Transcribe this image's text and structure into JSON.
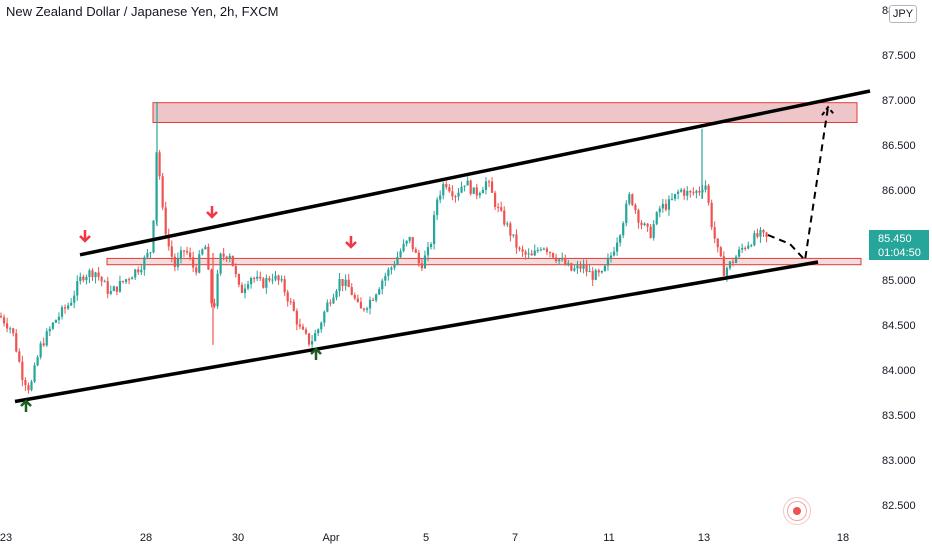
{
  "header": {
    "title": "New Zealand Dollar / Japanese Yen, 2h, FXCM",
    "currency": "JPY"
  },
  "price_tag": {
    "price": "85.450",
    "countdown": "01:04:50"
  },
  "colors": {
    "up": "#26a69a",
    "down": "#ef5350",
    "zone_fill": "#e0989c",
    "zone_border": "#e53935",
    "channel": "#000000",
    "arrow_up": "#1b5e20",
    "arrow_down": "#f23645"
  },
  "chart_data": {
    "type": "candlestick",
    "title": "New Zealand Dollar / Japanese Yen, 2h, FXCM",
    "ylim": [
      82.3,
      88.0
    ],
    "y_ticks": [
      "88.000",
      "87.500",
      "87.000",
      "86.500",
      "86.000",
      "85.500",
      "85.000",
      "84.500",
      "84.000",
      "83.500",
      "83.000",
      "82.500"
    ],
    "x_ticks": [
      "23",
      "28",
      "30",
      "Apr",
      "5",
      "7",
      "11",
      "13",
      "18"
    ],
    "last_price": 85.45,
    "close_path": [
      [
        0,
        84.6
      ],
      [
        12,
        84.45
      ],
      [
        22,
        83.95
      ],
      [
        30,
        83.78
      ],
      [
        40,
        84.25
      ],
      [
        55,
        84.55
      ],
      [
        70,
        84.75
      ],
      [
        82,
        85.05
      ],
      [
        95,
        85.1
      ],
      [
        110,
        84.85
      ],
      [
        125,
        85.0
      ],
      [
        140,
        85.15
      ],
      [
        152,
        85.35
      ],
      [
        157,
        86.55
      ],
      [
        162,
        85.8
      ],
      [
        168,
        85.4
      ],
      [
        175,
        85.15
      ],
      [
        185,
        85.35
      ],
      [
        195,
        85.1
      ],
      [
        205,
        85.4
      ],
      [
        213,
        84.6
      ],
      [
        220,
        85.25
      ],
      [
        230,
        85.3
      ],
      [
        240,
        84.85
      ],
      [
        250,
        85.05
      ],
      [
        262,
        84.95
      ],
      [
        272,
        85.05
      ],
      [
        282,
        84.95
      ],
      [
        292,
        84.7
      ],
      [
        300,
        84.45
      ],
      [
        310,
        84.3
      ],
      [
        318,
        84.45
      ],
      [
        328,
        84.75
      ],
      [
        340,
        85.0
      ],
      [
        350,
        84.9
      ],
      [
        360,
        84.65
      ],
      [
        372,
        84.8
      ],
      [
        382,
        85.0
      ],
      [
        392,
        85.15
      ],
      [
        402,
        85.35
      ],
      [
        410,
        85.45
      ],
      [
        420,
        85.15
      ],
      [
        430,
        85.35
      ],
      [
        437,
        85.9
      ],
      [
        445,
        86.1
      ],
      [
        455,
        85.95
      ],
      [
        465,
        86.1
      ],
      [
        475,
        85.95
      ],
      [
        487,
        86.1
      ],
      [
        497,
        85.8
      ],
      [
        507,
        85.6
      ],
      [
        520,
        85.3
      ],
      [
        532,
        85.25
      ],
      [
        542,
        85.4
      ],
      [
        552,
        85.3
      ],
      [
        562,
        85.2
      ],
      [
        572,
        85.1
      ],
      [
        582,
        85.15
      ],
      [
        592,
        85.05
      ],
      [
        602,
        85.05
      ],
      [
        612,
        85.3
      ],
      [
        620,
        85.55
      ],
      [
        630,
        85.95
      ],
      [
        640,
        85.65
      ],
      [
        650,
        85.5
      ],
      [
        660,
        85.8
      ],
      [
        670,
        85.85
      ],
      [
        680,
        86.0
      ],
      [
        690,
        85.95
      ],
      [
        700,
        86.0
      ],
      [
        705,
        86.1
      ],
      [
        712,
        85.6
      ],
      [
        718,
        85.3
      ],
      [
        724,
        85.1
      ],
      [
        732,
        85.2
      ],
      [
        742,
        85.35
      ],
      [
        752,
        85.45
      ],
      [
        760,
        85.5
      ],
      [
        768,
        85.45
      ]
    ],
    "annotations": {
      "channel_upper": [
        [
          80,
          85.28
        ],
        [
          870,
          87.1
        ]
      ],
      "channel_lower": [
        [
          15,
          83.65
        ],
        [
          818,
          85.2
        ]
      ],
      "resistance_zone": [
        86.75,
        86.97
      ],
      "support_zone": [
        85.17,
        85.24
      ],
      "projection": [
        [
          768,
          85.5
        ],
        [
          790,
          85.4
        ],
        [
          805,
          85.22
        ],
        [
          828,
          86.92
        ]
      ],
      "down_arrows_x": [
        85,
        212,
        351
      ],
      "up_arrows_x": [
        26,
        316
      ]
    }
  }
}
